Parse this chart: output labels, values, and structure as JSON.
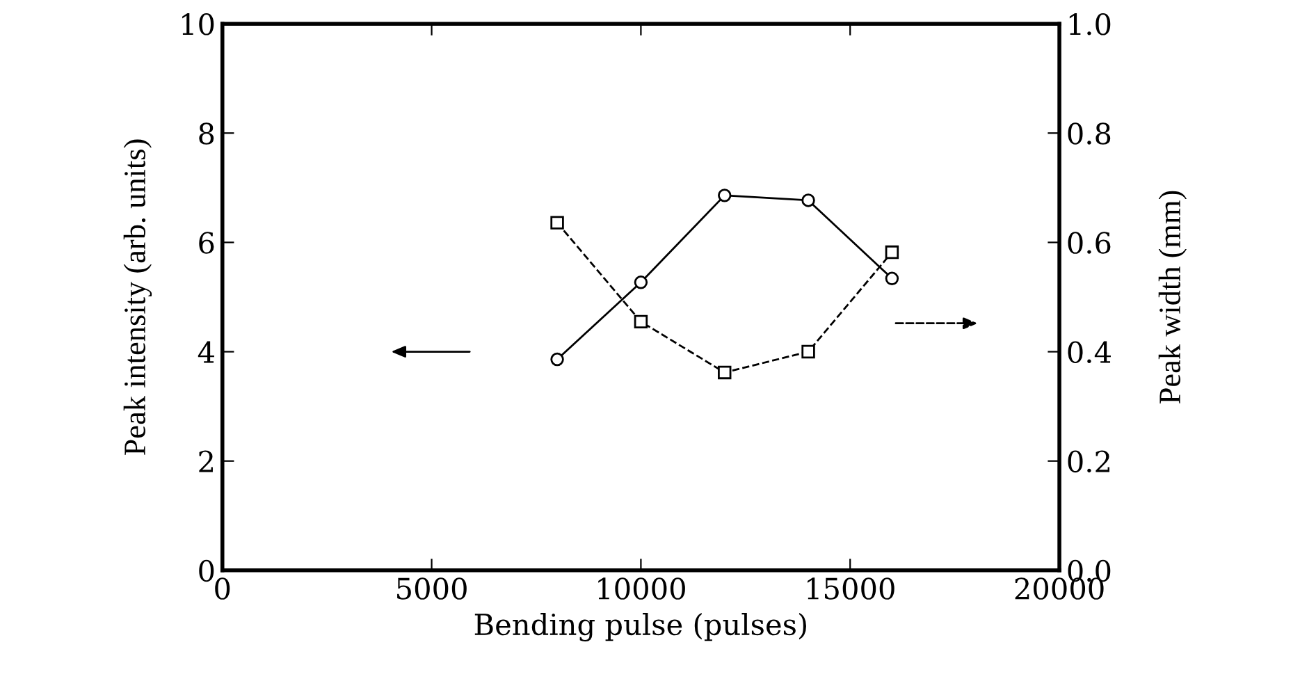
{
  "chart_data": {
    "type": "line",
    "xlabel": "Bending pulse (pulses)",
    "ylabel": "Peak intensity (arb. units)",
    "y2label": "Peak width (mm)",
    "series": [
      {
        "color": "#000000",
        "marker": "circle",
        "line_style": "solid",
        "x": [
          8000,
          10000,
          12000,
          14000,
          16000
        ],
        "values": [
          3.86,
          5.27,
          6.86,
          6.77,
          5.34
        ]
      },
      {
        "color": "#000000",
        "marker": "square",
        "line_style": "dashed",
        "axis": "y2",
        "x": [
          8000,
          10000,
          12000,
          14000,
          16000
        ],
        "values": [
          0.636,
          0.455,
          0.362,
          0.4,
          0.582
        ]
      }
    ],
    "xlim": [
      0,
      20000
    ],
    "xticks": [
      0,
      5000,
      10000,
      15000,
      20000
    ],
    "ylim": [
      0,
      10
    ],
    "yticks": [
      0,
      2,
      4,
      6,
      8,
      10
    ],
    "y2lim": [
      0,
      1
    ],
    "y2ticks": [
      {
        "value": 0,
        "label": "0.0"
      },
      {
        "value": 0.2,
        "label": "0.2"
      },
      {
        "value": 0.4,
        "label": "0.4"
      },
      {
        "value": 0.6,
        "label": "0.6"
      },
      {
        "value": 0.8,
        "label": "0.8"
      },
      {
        "value": 1,
        "label": "1.0"
      }
    ],
    "grid": false,
    "legend": false
  }
}
